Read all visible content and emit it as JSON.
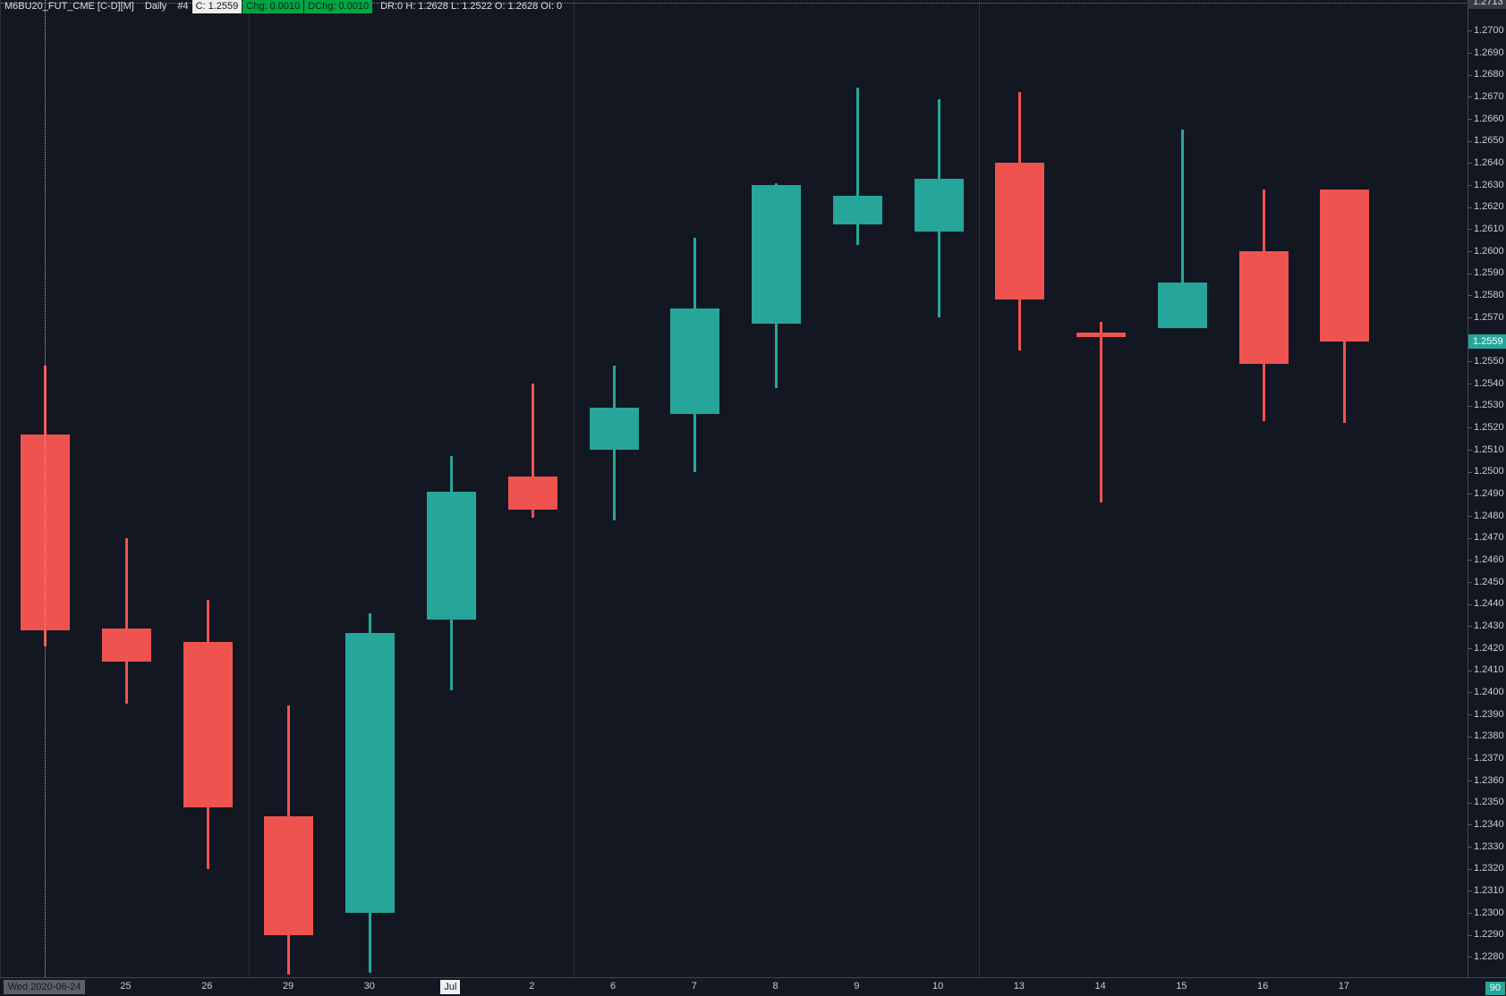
{
  "header": {
    "symbol_title": "M6BU20_FUT_CME [C-D][M]",
    "timeframe": "Daily",
    "chart_number": "#4",
    "close_badge": "C: 1.2559",
    "chg_badge": "Chg: 0.0010",
    "dchg_badge": "DChg: 0.0010",
    "stats": "DR:0 H: 1.2628 L: 1.2522 O: 1.2628 OI: 0"
  },
  "colors": {
    "background": "#131722",
    "up_candle": "#26a69a",
    "down_candle": "#ef5350",
    "axis_text": "#c7cbd6",
    "weekend_separator": "#2a2e39",
    "axis_border": "#434651",
    "header_green_badge": "#00a445",
    "header_white_badge": "#eeeeee",
    "crosshair_dotted": "#aab0bc",
    "last_price_badge_bg": "#26a69a"
  },
  "y_axis": {
    "top_badge": "1.2713",
    "last_price_badge": "1.2559",
    "last_price_value": 1.2559,
    "alert_line_price": 1.2713,
    "ticks": [
      "1.2700",
      "1.2690",
      "1.2680",
      "1.2670",
      "1.2660",
      "1.2650",
      "1.2640",
      "1.2630",
      "1.2620",
      "1.2610",
      "1.2600",
      "1.2590",
      "1.2580",
      "1.2570",
      "1.2560",
      "1.2550",
      "1.2540",
      "1.2530",
      "1.2520",
      "1.2510",
      "1.2500",
      "1.2490",
      "1.2480",
      "1.2470",
      "1.2460",
      "1.2450",
      "1.2440",
      "1.2430",
      "1.2420",
      "1.2410",
      "1.2400",
      "1.2390",
      "1.2380",
      "1.2370",
      "1.2360",
      "1.2350",
      "1.2340",
      "1.2330",
      "1.2320",
      "1.2310",
      "1.2300",
      "1.2290",
      "1.2280"
    ]
  },
  "x_axis": {
    "corner_badge": "90",
    "labels": [
      {
        "text": "Wed 2020-06-24",
        "style": "selected"
      },
      {
        "text": "25",
        "style": "plain"
      },
      {
        "text": "26",
        "style": "plain"
      },
      {
        "text": "29",
        "style": "plain"
      },
      {
        "text": "30",
        "style": "plain"
      },
      {
        "text": "Jul",
        "style": "month"
      },
      {
        "text": "2",
        "style": "plain"
      },
      {
        "text": "6",
        "style": "plain"
      },
      {
        "text": "7",
        "style": "plain"
      },
      {
        "text": "8",
        "style": "plain"
      },
      {
        "text": "9",
        "style": "plain"
      },
      {
        "text": "10",
        "style": "plain"
      },
      {
        "text": "13",
        "style": "plain"
      },
      {
        "text": "14",
        "style": "plain"
      },
      {
        "text": "15",
        "style": "plain"
      },
      {
        "text": "16",
        "style": "plain"
      },
      {
        "text": "17",
        "style": "plain"
      }
    ]
  },
  "chart_data": {
    "type": "candlestick",
    "title": "M6BU20_FUT_CME Daily",
    "ylim": [
      1.2272,
      1.2714
    ],
    "y_tick_step": 0.001,
    "grid": "weekend-separators-only",
    "selected_bar_date": "2020-06-24",
    "candles": [
      {
        "date": "2020-06-24",
        "open": 1.2517,
        "high": 1.2548,
        "low": 1.2421,
        "close": 1.2428
      },
      {
        "date": "2020-06-25",
        "open": 1.2429,
        "high": 1.247,
        "low": 1.2395,
        "close": 1.2414
      },
      {
        "date": "2020-06-26",
        "open": 1.2423,
        "high": 1.2442,
        "low": 1.232,
        "close": 1.2348
      },
      {
        "date": "2020-06-29",
        "open": 1.2344,
        "high": 1.2394,
        "low": 1.2272,
        "close": 1.229
      },
      {
        "date": "2020-06-30",
        "open": 1.23,
        "high": 1.2436,
        "low": 1.2273,
        "close": 1.2427
      },
      {
        "date": "2020-07-01",
        "open": 1.2433,
        "high": 1.2507,
        "low": 1.2401,
        "close": 1.2491
      },
      {
        "date": "2020-07-02",
        "open": 1.2498,
        "high": 1.254,
        "low": 1.2479,
        "close": 1.2483
      },
      {
        "date": "2020-07-06",
        "open": 1.251,
        "high": 1.2548,
        "low": 1.2478,
        "close": 1.2529
      },
      {
        "date": "2020-07-07",
        "open": 1.2526,
        "high": 1.2606,
        "low": 1.25,
        "close": 1.2574
      },
      {
        "date": "2020-07-08",
        "open": 1.2567,
        "high": 1.2631,
        "low": 1.2538,
        "close": 1.263
      },
      {
        "date": "2020-07-09",
        "open": 1.2612,
        "high": 1.2674,
        "low": 1.2603,
        "close": 1.2625
      },
      {
        "date": "2020-07-10",
        "open": 1.2609,
        "high": 1.2669,
        "low": 1.257,
        "close": 1.2633
      },
      {
        "date": "2020-07-13",
        "open": 1.264,
        "high": 1.2672,
        "low": 1.2555,
        "close": 1.2578
      },
      {
        "date": "2020-07-14",
        "open": 1.2563,
        "high": 1.2568,
        "low": 1.2486,
        "close": 1.2561
      },
      {
        "date": "2020-07-15",
        "open": 1.2565,
        "high": 1.2655,
        "low": 1.2565,
        "close": 1.2586
      },
      {
        "date": "2020-07-16",
        "open": 1.26,
        "high": 1.2628,
        "low": 1.2523,
        "close": 1.2549
      },
      {
        "date": "2020-07-17",
        "open": 1.2628,
        "high": 1.2628,
        "low": 1.2522,
        "close": 1.2559
      }
    ],
    "weekend_separator_after_index": [
      2,
      6,
      11
    ]
  }
}
